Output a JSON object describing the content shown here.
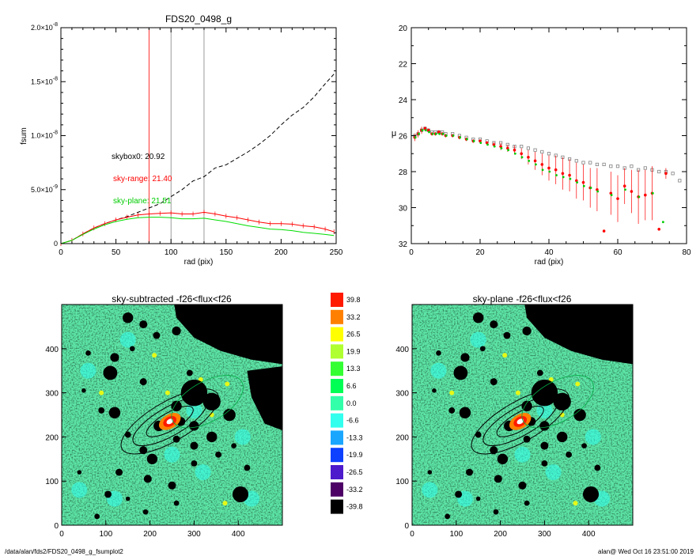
{
  "charts": {
    "fsum": {
      "title": "FDS20_0498_g",
      "xlabel": "rad (pix)",
      "ylabel": "fsum",
      "xticks": [
        "0",
        "50",
        "100",
        "150",
        "200",
        "250"
      ],
      "ytick_mantissa": [
        "0",
        "5.0×10",
        "1.0×10",
        "1.5×10",
        "2.0×10"
      ],
      "ytick_exponent": [
        "",
        "-9",
        "-8",
        "-8",
        "-8"
      ],
      "annotations": {
        "skybox": "skybox0: 20.92",
        "skyrange": "sky-range: 21.40",
        "skyplane": "sky-plane: 21.51"
      }
    },
    "mu": {
      "xlabel": "rad (pix)",
      "ylabel": "μ",
      "xticks": [
        "0",
        "20",
        "40",
        "60",
        "80"
      ],
      "yticks": [
        "20",
        "22",
        "24",
        "26",
        "28",
        "30",
        "32"
      ]
    },
    "img_left": {
      "title": "sky-subtracted -f26<flux<f26",
      "xticks": [
        "0",
        "100",
        "200",
        "300",
        "400"
      ],
      "yticks": [
        "0",
        "100",
        "200",
        "300",
        "400"
      ]
    },
    "img_right": {
      "title": "sky-plane -f26<flux<f26",
      "xticks": [
        "0",
        "100",
        "200",
        "300",
        "400"
      ],
      "yticks": [
        "0",
        "100",
        "200",
        "300",
        "400"
      ]
    },
    "colorbar": {
      "labels": [
        "39.8",
        "33.2",
        "26.5",
        "19.9",
        "13.3",
        "6.6",
        "0.0",
        "-6.6",
        "-13.3",
        "-19.9",
        "-26.5",
        "-33.2",
        "-39.8"
      ],
      "colors": [
        "#ff1a00",
        "#ff8000",
        "#ffff00",
        "#b0ff30",
        "#33ff33",
        "#00ff55",
        "#33ffaa",
        "#33ffee",
        "#1aa6ff",
        "#0d40ff",
        "#4d1acc",
        "#4d0066",
        "#000000"
      ]
    }
  },
  "footer": {
    "path": "/data/alan/fds2/FDS20_0498_g_fsumplot2",
    "stamp": "alan@  Wed Oct 16 23:51:00 2019"
  },
  "chart_data": [
    {
      "type": "line",
      "title": "FDS20_0498_g",
      "xlabel": "rad (pix)",
      "ylabel": "fsum",
      "xlim": [
        0,
        250
      ],
      "ylim": [
        0,
        2e-08
      ],
      "vlines": [
        {
          "x": 80,
          "color": "#ff0000"
        },
        {
          "x": 100,
          "color": "#808080"
        },
        {
          "x": 130,
          "color": "#808080"
        }
      ],
      "series": [
        {
          "name": "skybox0: 20.92",
          "style": "dashed",
          "color": "#000000",
          "x": [
            0,
            10,
            20,
            30,
            40,
            50,
            60,
            70,
            80,
            90,
            100,
            110,
            120,
            130,
            140,
            150,
            160,
            170,
            180,
            190,
            200,
            210,
            220,
            230,
            240,
            248
          ],
          "y": [
            0,
            3e-10,
            9e-10,
            1.45e-09,
            1.85e-09,
            2.2e-09,
            2.5e-09,
            2.9e-09,
            3.3e-09,
            3.7e-09,
            4.35e-09,
            5e-09,
            5.8e-09,
            6.2e-09,
            7e-09,
            7.3e-09,
            7.9e-09,
            8.5e-09,
            9.2e-09,
            1e-08,
            1.1e-08,
            1.19e-08,
            1.26e-08,
            1.36e-08,
            1.48e-08,
            1.57e-08
          ]
        },
        {
          "name": "sky-range: 21.40",
          "style": "solid",
          "color": "#ff0000",
          "x": [
            0,
            10,
            20,
            30,
            40,
            50,
            60,
            70,
            80,
            90,
            100,
            110,
            120,
            130,
            140,
            150,
            160,
            170,
            180,
            190,
            200,
            210,
            220,
            230,
            240,
            248
          ],
          "y": [
            0,
            3e-10,
            9e-10,
            1.45e-09,
            1.85e-09,
            2.2e-09,
            2.45e-09,
            2.65e-09,
            2.75e-09,
            2.8e-09,
            2.85e-09,
            2.75e-09,
            2.75e-09,
            2.9e-09,
            2.75e-09,
            2.55e-09,
            2.4e-09,
            2.2e-09,
            2e-09,
            1.85e-09,
            1.85e-09,
            1.8e-09,
            1.65e-09,
            1.55e-09,
            1.35e-09,
            1.1e-09
          ]
        },
        {
          "name": "sky-plane: 21.51",
          "style": "solid",
          "color": "#00dd00",
          "x": [
            0,
            10,
            20,
            30,
            40,
            50,
            60,
            70,
            80,
            90,
            100,
            110,
            120,
            130,
            140,
            150,
            160,
            170,
            180,
            190,
            200,
            210,
            220,
            230,
            240,
            248
          ],
          "y": [
            0,
            3e-10,
            8.5e-10,
            1.35e-09,
            1.75e-09,
            2.05e-09,
            2.25e-09,
            2.4e-09,
            2.45e-09,
            2.45e-09,
            2.4e-09,
            2.3e-09,
            2.3e-09,
            2.35e-09,
            2.2e-09,
            2.05e-09,
            1.85e-09,
            1.65e-09,
            1.5e-09,
            1.35e-09,
            1.3e-09,
            1.2e-09,
            1.05e-09,
            9.5e-10,
            8.5e-10,
            7.5e-10
          ]
        }
      ]
    },
    {
      "type": "scatter",
      "xlabel": "rad (pix)",
      "ylabel": "μ",
      "xlim": [
        0,
        80
      ],
      "ylim": [
        32,
        20
      ],
      "series": [
        {
          "name": "skybox0",
          "marker": "square-open",
          "color": "#808080",
          "x": [
            1,
            2,
            3,
            4,
            5,
            6,
            7,
            8,
            9,
            10,
            12,
            14,
            16,
            18,
            20,
            22,
            24,
            26,
            28,
            30,
            32,
            34,
            36,
            38,
            40,
            42,
            44,
            46,
            48,
            50,
            52,
            54,
            56,
            58,
            60,
            62,
            64,
            66,
            68,
            70,
            72,
            74,
            76,
            78
          ],
          "y": [
            26.0,
            25.9,
            25.7,
            25.6,
            25.7,
            25.8,
            25.8,
            25.8,
            25.8,
            25.9,
            25.9,
            26.0,
            26.1,
            26.2,
            26.2,
            26.3,
            26.4,
            26.4,
            26.5,
            26.6,
            26.6,
            26.7,
            26.8,
            26.9,
            27.0,
            27.1,
            27.2,
            27.3,
            27.4,
            27.5,
            27.5,
            27.6,
            27.6,
            27.7,
            27.7,
            27.8,
            27.7,
            27.9,
            27.8,
            27.9,
            28.0,
            28.0,
            28.1,
            28.5
          ]
        },
        {
          "name": "sky-range",
          "marker": "dot",
          "color": "#ff0000",
          "x": [
            1,
            2,
            3,
            4,
            5,
            6,
            7,
            8,
            9,
            10,
            12,
            14,
            16,
            18,
            20,
            22,
            24,
            26,
            28,
            30,
            32,
            34,
            36,
            38,
            40,
            42,
            44,
            46,
            48,
            50,
            52,
            54,
            56,
            58,
            60,
            62,
            64,
            66,
            68,
            70,
            72,
            74
          ],
          "y": [
            26.1,
            25.9,
            25.7,
            25.6,
            25.7,
            25.9,
            25.9,
            25.8,
            25.9,
            26.0,
            26.0,
            26.1,
            26.2,
            26.3,
            26.3,
            26.4,
            26.5,
            26.6,
            26.7,
            26.8,
            27.0,
            27.2,
            27.4,
            27.6,
            27.8,
            27.9,
            28.1,
            28.2,
            28.5,
            28.6,
            28.9,
            29.0,
            31.3,
            29.2,
            29.5,
            28.8,
            29.1,
            29.4,
            29.3,
            29.2,
            31.2,
            28.1
          ],
          "err": [
            0.2,
            0.2,
            0.2,
            0.1,
            0.1,
            0.1,
            0.1,
            0.1,
            0.1,
            0.1,
            0.1,
            0.1,
            0.1,
            0.1,
            0.1,
            0.1,
            0.15,
            0.2,
            0.2,
            0.25,
            0.3,
            0.4,
            0.5,
            0.6,
            0.7,
            0.8,
            0.9,
            0.9,
            1.0,
            1.0,
            1.1,
            1.2,
            0,
            1.2,
            1.3,
            1.0,
            1.2,
            1.5,
            1.4,
            1.5,
            0,
            0.3
          ]
        },
        {
          "name": "sky-plane",
          "marker": "dot",
          "color": "#00cc00",
          "x": [
            1,
            2,
            3,
            4,
            5,
            6,
            7,
            8,
            9,
            10,
            12,
            14,
            16,
            18,
            20,
            22,
            24,
            26,
            28,
            30,
            32,
            34,
            36,
            38,
            40,
            42,
            44,
            46,
            48,
            50,
            52,
            54,
            58,
            62,
            66,
            70,
            73
          ],
          "y": [
            26.1,
            25.9,
            25.7,
            25.7,
            25.8,
            25.9,
            25.9,
            25.9,
            25.9,
            26.0,
            26.0,
            26.1,
            26.2,
            26.3,
            26.4,
            26.5,
            26.6,
            26.7,
            26.8,
            27.0,
            27.2,
            27.4,
            27.6,
            27.9,
            28.0,
            28.2,
            28.3,
            28.4,
            28.6,
            28.8,
            28.9,
            29.1,
            29.3,
            29.0,
            29.4,
            29.2,
            30.8
          ]
        }
      ]
    }
  ]
}
